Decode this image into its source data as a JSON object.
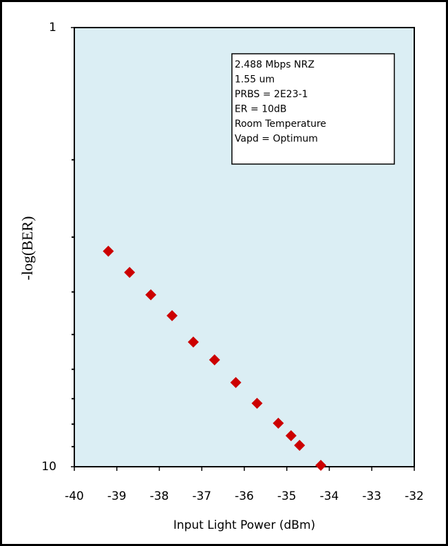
{
  "chart_data": {
    "type": "scatter",
    "y_label": "-log(BER)",
    "x_label": "Input Light Power (dBm)",
    "annotation_lines": [
      "2.488 Mbps NRZ",
      "1.55 um",
      "PRBS = 2E23-1",
      "ER = 10dB",
      "Room Temperature",
      "Vapd = Optimum"
    ],
    "x": [
      -39.2,
      -38.7,
      -38.2,
      -37.7,
      -37.2,
      -36.7,
      -36.2,
      -35.7,
      -35.2,
      -34.9,
      -34.7,
      -34.2
    ],
    "values": [
      3.23,
      3.61,
      4.06,
      4.53,
      5.2,
      5.71,
      6.43,
      7.17,
      7.96,
      8.5,
      8.94,
      9.93
    ],
    "color": "#cc0000",
    "xlim": [
      -40,
      -32
    ],
    "xticks": [
      -40,
      -39,
      -38,
      -37,
      -36,
      -35,
      -34,
      -33,
      -32
    ],
    "ylim": [
      1,
      10
    ],
    "yticks": [
      1,
      10
    ],
    "minor_yticks": [
      2,
      3,
      4,
      5,
      6,
      7,
      8,
      9
    ],
    "y_log": true,
    "y_inverted": true,
    "background": "#dbeef4"
  }
}
